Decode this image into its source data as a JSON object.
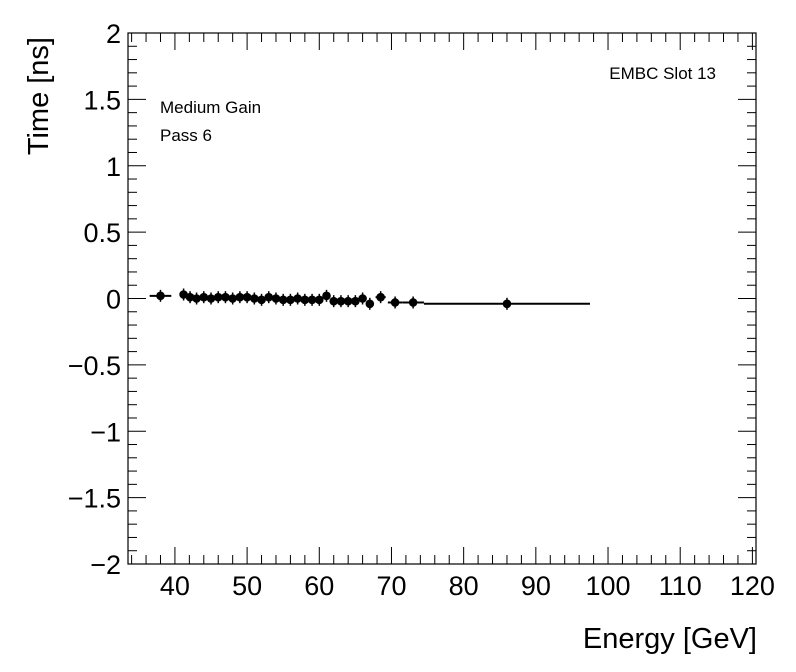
{
  "chart_data": {
    "type": "scatter",
    "title": "",
    "xlabel": "Energy [GeV]",
    "ylabel": "Time [ns]",
    "xlim": [
      33.5,
      120.5
    ],
    "ylim": [
      -2,
      2
    ],
    "x_ticks": [
      40,
      50,
      60,
      70,
      80,
      90,
      100,
      110,
      120
    ],
    "y_ticks": [
      -2,
      -1.5,
      -1,
      -0.5,
      0,
      0.5,
      1,
      1.5,
      2
    ],
    "y_tick_labels": [
      "−2",
      "−1.5",
      "−1",
      "−0.5",
      "0",
      "0.5",
      "1",
      "1.5",
      "2"
    ],
    "grid": false,
    "annotations": {
      "top_right": "EMBC Slot 13",
      "line1": "Medium Gain",
      "line2": "Pass 6"
    },
    "series": [
      {
        "points": [
          {
            "x": 38.0,
            "y": 0.02,
            "xerr": 1.5
          },
          {
            "x": 41.2,
            "y": 0.03,
            "xerr": 0.4
          },
          {
            "x": 42.1,
            "y": 0.01,
            "xerr": 0.4
          },
          {
            "x": 43.0,
            "y": 0.0,
            "xerr": 0.4
          },
          {
            "x": 44.0,
            "y": 0.01,
            "xerr": 0.4
          },
          {
            "x": 45.0,
            "y": 0.0,
            "xerr": 0.4
          },
          {
            "x": 46.0,
            "y": 0.01,
            "xerr": 0.4
          },
          {
            "x": 47.0,
            "y": 0.01,
            "xerr": 0.4
          },
          {
            "x": 48.0,
            "y": 0.0,
            "xerr": 0.4
          },
          {
            "x": 49.0,
            "y": 0.01,
            "xerr": 0.4
          },
          {
            "x": 50.0,
            "y": 0.01,
            "xerr": 0.4
          },
          {
            "x": 51.0,
            "y": 0.0,
            "xerr": 0.4
          },
          {
            "x": 52.0,
            "y": -0.01,
            "xerr": 0.4
          },
          {
            "x": 53.0,
            "y": 0.01,
            "xerr": 0.4
          },
          {
            "x": 54.0,
            "y": 0.0,
            "xerr": 0.4
          },
          {
            "x": 55.0,
            "y": -0.01,
            "xerr": 0.4
          },
          {
            "x": 56.0,
            "y": -0.01,
            "xerr": 0.4
          },
          {
            "x": 57.0,
            "y": 0.0,
            "xerr": 0.4
          },
          {
            "x": 58.0,
            "y": -0.01,
            "xerr": 0.4
          },
          {
            "x": 59.0,
            "y": -0.01,
            "xerr": 0.4
          },
          {
            "x": 60.0,
            "y": -0.01,
            "xerr": 0.4
          },
          {
            "x": 61.0,
            "y": 0.02,
            "xerr": 0.4
          },
          {
            "x": 62.0,
            "y": -0.02,
            "xerr": 0.4
          },
          {
            "x": 63.0,
            "y": -0.02,
            "xerr": 0.4
          },
          {
            "x": 64.0,
            "y": -0.02,
            "xerr": 0.4
          },
          {
            "x": 65.0,
            "y": -0.02,
            "xerr": 0.4
          },
          {
            "x": 66.0,
            "y": 0.0,
            "xerr": 0.4
          },
          {
            "x": 67.0,
            "y": -0.04,
            "xerr": 0.5
          },
          {
            "x": 68.5,
            "y": 0.01,
            "xerr": 0.7
          },
          {
            "x": 70.5,
            "y": -0.03,
            "xerr": 1.0
          },
          {
            "x": 73.0,
            "y": -0.03,
            "xerr": 1.5
          },
          {
            "x": 86.0,
            "y": -0.04,
            "xerr": 11.5
          }
        ]
      }
    ]
  }
}
